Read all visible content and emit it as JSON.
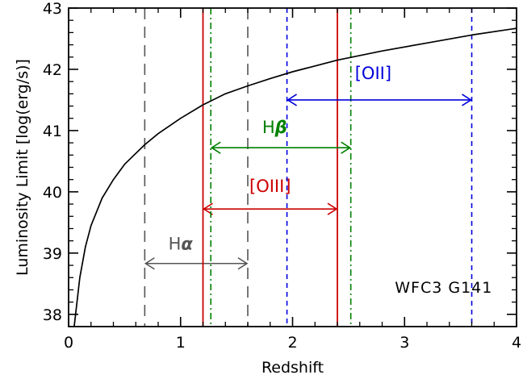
{
  "chart_data": {
    "type": "line",
    "title": "",
    "xlabel": "Redshift",
    "ylabel": "Luminosity Limit [log(erg/s)]",
    "xlim": [
      0,
      4
    ],
    "ylim": [
      37.8,
      43
    ],
    "xticks": [
      0,
      1,
      2,
      3,
      4
    ],
    "yticks": [
      38,
      39,
      40,
      41,
      42,
      43
    ],
    "xtick_labels": [
      "0",
      "1",
      "2",
      "3",
      "4"
    ],
    "ytick_labels": [
      "38",
      "39",
      "40",
      "41",
      "42",
      "43"
    ],
    "grid": false,
    "annotation": "WFC3 G141",
    "curve": {
      "color": "#000000",
      "x": [
        0.05,
        0.1,
        0.15,
        0.2,
        0.3,
        0.4,
        0.5,
        0.68,
        0.8,
        1.0,
        1.2,
        1.4,
        1.6,
        1.8,
        2.0,
        2.4,
        2.8,
        3.2,
        3.6,
        4.0
      ],
      "y": [
        37.8,
        38.6,
        39.1,
        39.45,
        39.9,
        40.2,
        40.45,
        40.77,
        40.95,
        41.2,
        41.42,
        41.6,
        41.73,
        41.85,
        41.96,
        42.15,
        42.3,
        42.43,
        42.56,
        42.67
      ]
    },
    "lines": [
      {
        "name": "Hα",
        "label_main": "H",
        "label_sub": "α",
        "color": "#555555",
        "dash": "long-dash",
        "zmin": 0.68,
        "zmax": 1.6,
        "arrow_y": 38.83,
        "label_x": 1.0,
        "label_y": 39.06
      },
      {
        "name": "[OIII]",
        "label_main": "[OIII]",
        "label_sub": "",
        "color": "#cc0000",
        "dash": "solid",
        "zmin": 1.2,
        "zmax": 2.4,
        "arrow_y": 39.72,
        "label_x": 1.8,
        "label_y": 40.0
      },
      {
        "name": "Hβ",
        "label_main": "H",
        "label_sub": "β",
        "color": "#008000",
        "dash": "dash-dot",
        "zmin": 1.27,
        "zmax": 2.52,
        "arrow_y": 40.72,
        "label_x": 1.84,
        "label_y": 40.96
      },
      {
        "name": "[OII]",
        "label_main": "[OII]",
        "label_sub": "",
        "color": "#0000dd",
        "dash": "short-dash",
        "zmin": 1.95,
        "zmax": 3.6,
        "arrow_y": 41.5,
        "label_x": 2.72,
        "label_y": 41.84
      }
    ]
  }
}
